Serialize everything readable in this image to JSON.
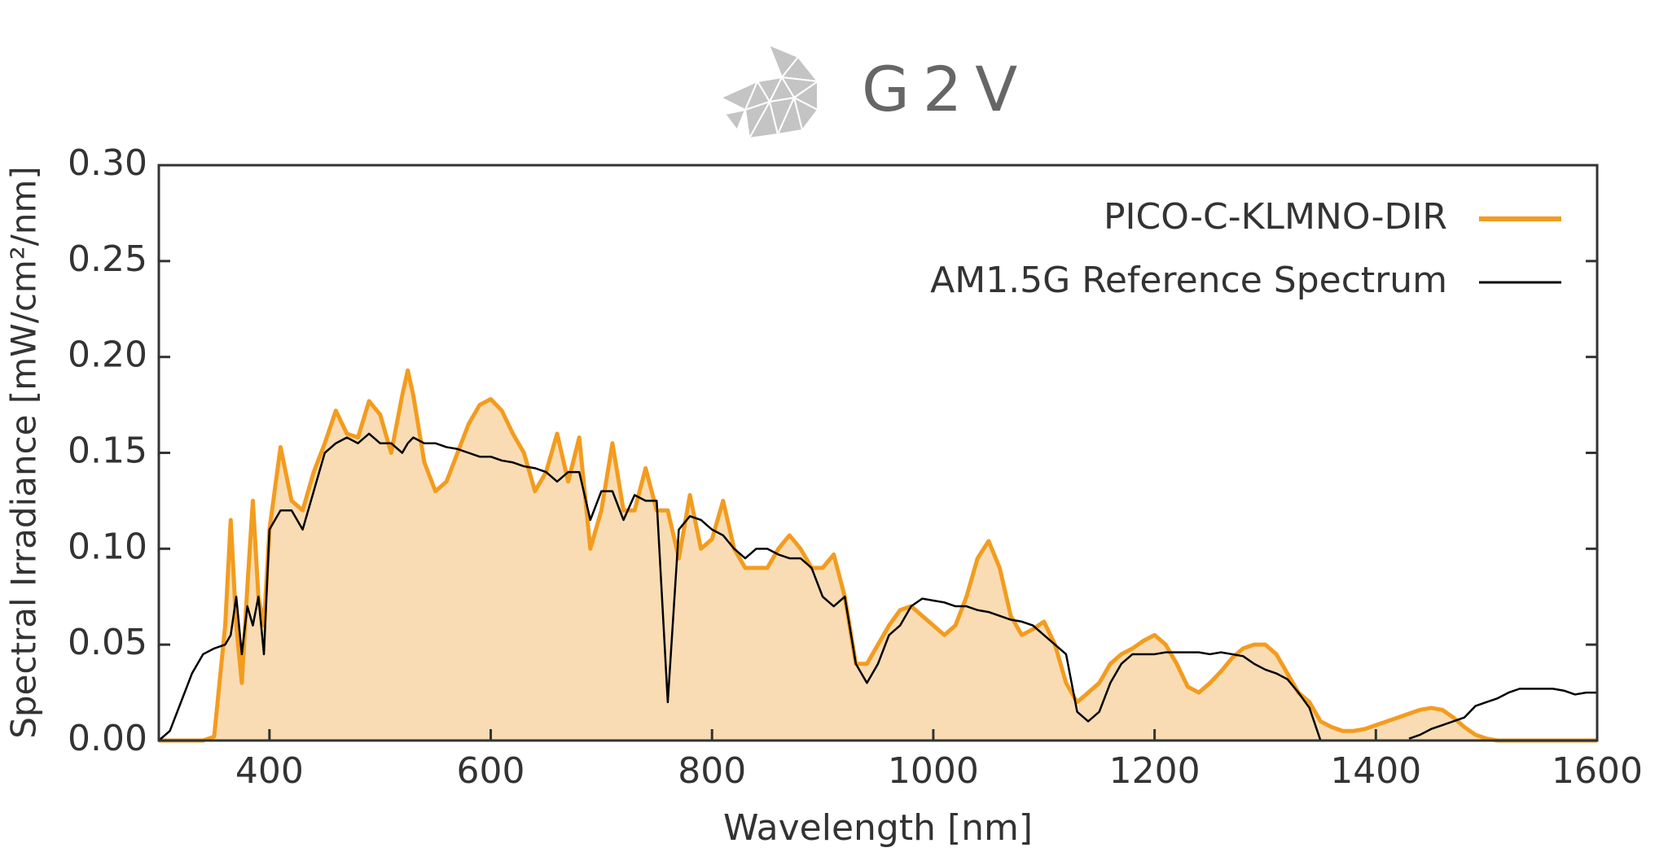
{
  "logo_text": "G2V",
  "chart_data": {
    "type": "line",
    "xlabel": "Wavelength [nm]",
    "ylabel": "Spectral Irradiance [mW/cm²/nm]",
    "xlim": [
      300,
      1600
    ],
    "ylim": [
      0,
      0.3
    ],
    "xticks": [
      400,
      600,
      800,
      1000,
      1200,
      1400,
      1600
    ],
    "yticks": [
      {
        "value": 0,
        "label": "0.00"
      },
      {
        "value": 0.05,
        "label": "0.05"
      },
      {
        "value": 0.1,
        "label": "0.10"
      },
      {
        "value": 0.15,
        "label": "0.15"
      },
      {
        "value": 0.2,
        "label": "0.20"
      },
      {
        "value": 0.25,
        "label": "0.25"
      },
      {
        "value": 0.3,
        "label": "0.30"
      }
    ],
    "legend": "upper right",
    "x": [
      300,
      310,
      320,
      330,
      340,
      350,
      360,
      365,
      370,
      375,
      380,
      385,
      390,
      395,
      400,
      410,
      420,
      430,
      440,
      450,
      460,
      470,
      480,
      490,
      500,
      510,
      520,
      525,
      530,
      540,
      550,
      560,
      570,
      580,
      590,
      600,
      610,
      620,
      630,
      640,
      650,
      660,
      670,
      680,
      690,
      700,
      710,
      720,
      730,
      740,
      750,
      760,
      770,
      780,
      790,
      800,
      810,
      820,
      830,
      840,
      850,
      860,
      870,
      880,
      890,
      900,
      910,
      920,
      930,
      940,
      950,
      960,
      970,
      980,
      990,
      1000,
      1010,
      1020,
      1030,
      1040,
      1050,
      1060,
      1070,
      1080,
      1090,
      1100,
      1110,
      1120,
      1130,
      1140,
      1150,
      1160,
      1170,
      1180,
      1190,
      1200,
      1210,
      1220,
      1230,
      1240,
      1250,
      1260,
      1270,
      1280,
      1290,
      1300,
      1310,
      1320,
      1330,
      1340,
      1350,
      1360,
      1370,
      1380,
      1390,
      1400,
      1410,
      1420,
      1430,
      1440,
      1450,
      1460,
      1470,
      1480,
      1490,
      1500,
      1510,
      1520,
      1530,
      1540,
      1550,
      1560,
      1570,
      1580,
      1590,
      1600
    ],
    "series": [
      {
        "name": "PICO-C-KLMNO-DIR",
        "color": "#f39c1e",
        "fill": "#f9dcb4",
        "values": [
          0,
          0,
          0,
          0,
          0,
          0.002,
          0.06,
          0.115,
          0.06,
          0.03,
          0.08,
          0.125,
          0.075,
          0.06,
          0.11,
          0.153,
          0.125,
          0.12,
          0.14,
          0.155,
          0.172,
          0.16,
          0.158,
          0.177,
          0.17,
          0.15,
          0.18,
          0.193,
          0.18,
          0.145,
          0.13,
          0.135,
          0.15,
          0.165,
          0.175,
          0.178,
          0.172,
          0.16,
          0.15,
          0.13,
          0.14,
          0.16,
          0.135,
          0.158,
          0.1,
          0.12,
          0.155,
          0.12,
          0.12,
          0.142,
          0.12,
          0.12,
          0.095,
          0.128,
          0.1,
          0.105,
          0.125,
          0.1,
          0.09,
          0.09,
          0.09,
          0.1,
          0.107,
          0.1,
          0.09,
          0.09,
          0.097,
          0.075,
          0.04,
          0.04,
          0.05,
          0.06,
          0.068,
          0.07,
          0.065,
          0.06,
          0.055,
          0.06,
          0.075,
          0.095,
          0.104,
          0.09,
          0.065,
          0.055,
          0.058,
          0.062,
          0.05,
          0.03,
          0.02,
          0.025,
          0.03,
          0.04,
          0.045,
          0.048,
          0.052,
          0.055,
          0.05,
          0.04,
          0.028,
          0.025,
          0.03,
          0.036,
          0.043,
          0.048,
          0.05,
          0.05,
          0.045,
          0.035,
          0.025,
          0.02,
          0.01,
          0.007,
          0.005,
          0.005,
          0.006,
          0.008,
          0.01,
          0.012,
          0.014,
          0.016,
          0.017,
          0.016,
          0.012,
          0.007,
          0.003,
          0.001,
          0,
          0,
          0,
          0,
          0,
          0,
          0,
          0,
          0,
          0
        ]
      },
      {
        "name": "AM1.5G Reference Spectrum",
        "color": "#000000",
        "values": [
          0,
          0.005,
          0.02,
          0.035,
          0.045,
          0.048,
          0.05,
          0.055,
          0.075,
          0.045,
          0.07,
          0.06,
          0.075,
          0.045,
          0.11,
          0.12,
          0.12,
          0.11,
          0.13,
          0.15,
          0.155,
          0.158,
          0.155,
          0.16,
          0.155,
          0.155,
          0.15,
          0.155,
          0.158,
          0.155,
          0.155,
          0.153,
          0.152,
          0.15,
          0.148,
          0.148,
          0.146,
          0.145,
          0.143,
          0.142,
          0.14,
          0.135,
          0.14,
          0.14,
          0.115,
          0.13,
          0.13,
          0.115,
          0.128,
          0.125,
          0.125,
          0.02,
          0.11,
          0.117,
          0.115,
          0.11,
          0.107,
          0.1,
          0.095,
          0.1,
          0.1,
          0.097,
          0.095,
          0.095,
          0.09,
          0.075,
          0.07,
          0.075,
          0.04,
          0.03,
          0.04,
          0.055,
          0.06,
          0.07,
          0.074,
          0.073,
          0.072,
          0.07,
          0.07,
          0.068,
          0.067,
          0.065,
          0.063,
          0.062,
          0.06,
          0.055,
          0.05,
          0.045,
          0.015,
          0.01,
          0.015,
          0.03,
          0.04,
          0.045,
          0.045,
          0.045,
          0.046,
          0.046,
          0.046,
          0.046,
          0.045,
          0.046,
          0.045,
          0.044,
          0.04,
          0.037,
          0.035,
          0.032,
          0.025,
          0.017,
          0,
          null,
          null,
          null,
          null,
          null,
          null,
          null,
          0.001,
          0.003,
          0.006,
          0.008,
          0.01,
          0.012,
          0.018,
          0.02,
          0.022,
          0.025,
          0.027,
          0.027,
          0.027,
          0.027,
          0.026,
          0.024,
          0.025,
          0.025
        ]
      }
    ]
  }
}
